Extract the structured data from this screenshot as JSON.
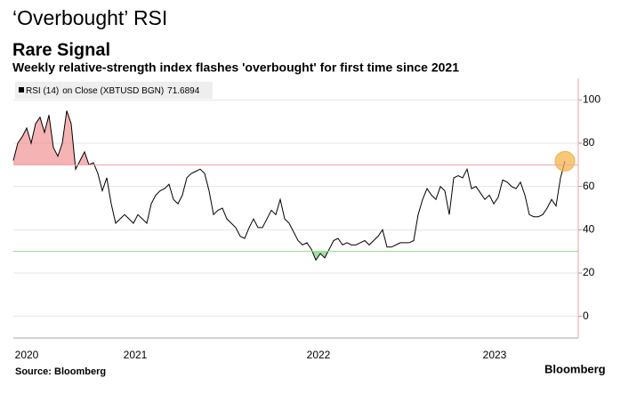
{
  "chart_data": {
    "type": "line",
    "title": "‘Overbought’ RSI",
    "subtitle": "Rare Signal",
    "description": "Weekly relative-strength index flashes 'overbought' for first time since 2021",
    "source": "Source: Bloomberg",
    "brand": "Bloomberg",
    "legend_detail": "on Close (XBTUSD BGN)",
    "series": [
      {
        "name": "RSI (14)",
        "color": "#000000",
        "values": [
          72,
          80,
          83,
          87,
          80,
          89,
          92,
          85,
          93,
          78,
          74,
          80,
          95,
          89,
          68,
          72,
          76,
          70,
          71,
          66,
          58,
          64,
          52,
          43,
          45,
          47,
          45,
          43,
          47,
          45,
          43,
          52,
          56,
          58,
          59,
          61,
          54,
          52,
          56,
          64,
          66,
          67,
          68,
          66,
          58,
          47,
          49,
          50,
          45,
          43,
          41,
          37,
          36,
          41,
          45,
          41,
          41,
          45,
          49,
          47,
          54,
          45,
          43,
          39,
          35,
          33,
          34,
          31,
          26,
          29,
          27,
          31,
          35,
          36,
          33,
          34,
          33,
          33,
          34,
          35,
          33,
          35,
          37,
          40,
          32,
          32,
          33,
          34,
          34,
          34,
          35,
          47,
          54,
          59,
          56,
          54,
          60,
          58,
          47,
          64,
          65,
          64,
          68,
          59,
          60,
          57,
          54,
          56,
          52,
          55,
          63,
          62,
          60,
          59,
          62,
          56,
          47,
          46,
          46,
          47,
          50,
          54,
          51,
          64,
          71.6894
        ]
      }
    ],
    "xlim": [
      0,
      127
    ],
    "xticks": [
      {
        "value": 3,
        "label": "2020"
      },
      {
        "value": 27.4,
        "label": "2021"
      },
      {
        "value": 68.6,
        "label": "2022"
      },
      {
        "value": 108.2,
        "label": "2023"
      }
    ],
    "ylim": [
      -10,
      110
    ],
    "yticks": [
      0,
      20,
      40,
      60,
      80,
      100
    ],
    "y_axis_side": "right",
    "grid": true,
    "reference_lines": [
      {
        "value": 70,
        "color": "#f2a0a0",
        "fill": "#f08080",
        "side": "above"
      },
      {
        "value": 30,
        "color": "#88dd88",
        "fill": "#66cc66",
        "side": "below"
      }
    ],
    "highlight_color": "#f5b041"
  }
}
